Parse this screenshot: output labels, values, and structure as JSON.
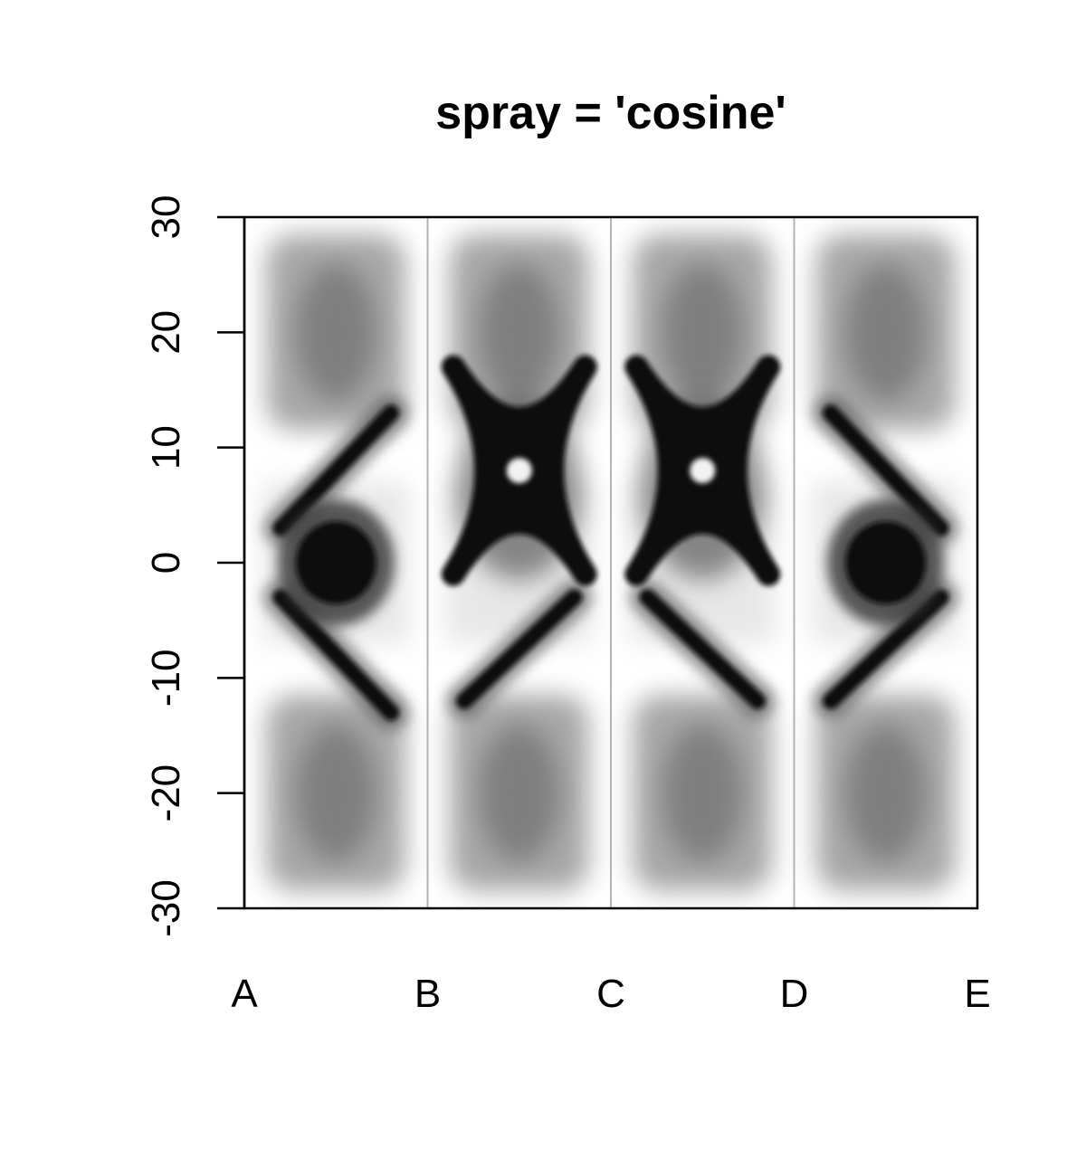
{
  "chart_data": {
    "type": "heatmap",
    "title": "spray = 'cosine'",
    "xlabel": "",
    "ylabel": "",
    "x_tick_labels": [
      "A",
      "B",
      "C",
      "D",
      "E"
    ],
    "y_ticks": [
      30,
      20,
      10,
      0,
      -10,
      -20,
      -30
    ],
    "y_tick_labels": [
      "30",
      "20",
      "10",
      "0",
      "-10",
      "-20",
      "-30"
    ],
    "xlim": [
      0,
      4
    ],
    "ylim": [
      -30,
      30
    ],
    "grid": "vertical lines at B, C, D",
    "legend": "none",
    "colors": {
      "ink": "#000000",
      "grid_line": "#b3b3b3",
      "background": "#ffffff",
      "density_dark": "#111111"
    }
  }
}
